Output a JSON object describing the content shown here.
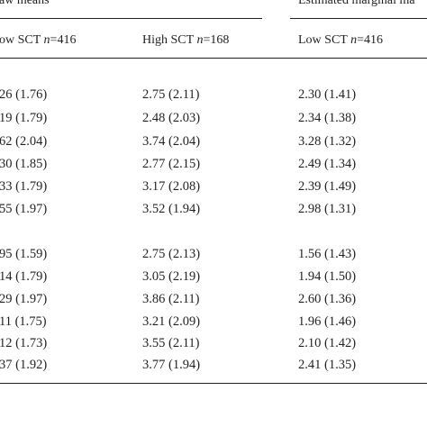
{
  "header": {
    "raw_means": "aw means",
    "estimated_marginal_means": "Estimated marginal ma",
    "columns": [
      {
        "label": "ow SCT ",
        "n": "n",
        "value": "=416"
      },
      {
        "label": "High SCT ",
        "n": "n",
        "value": "=168"
      },
      {
        "label": "Low SCT ",
        "n": "n",
        "value": "=416"
      }
    ]
  },
  "group1": [
    [
      "26 (1.76)",
      "2.75 (2.11)",
      "2.30 (1.41)"
    ],
    [
      "19 (1.79)",
      "2.48 (2.03)",
      "2.34 (1.38)"
    ],
    [
      "62 (2.04)",
      "3.74 (2.04)",
      "3.28 (1.32)"
    ],
    [
      "30 (1.85)",
      "2.77 (2.15)",
      "2.49 (1.34)"
    ],
    [
      "33 (1.79)",
      "3.17 (2.08)",
      "2.39 (1.49)"
    ],
    [
      "55 (1.97)",
      "3.52 (1.94)",
      "2.98 (1.31)"
    ]
  ],
  "group2": [
    [
      "95 (1.59)",
      "2.75 (2.13)",
      "1.56 (1.43)"
    ],
    [
      "14 (1.79)",
      "3.05 (2.19)",
      "1.94 (1.50)"
    ],
    [
      "29 (1.97)",
      "3.86 (2.11)",
      "2.60 (1.36)"
    ],
    [
      "11 (1.75)",
      "3.21 (2.09)",
      "1.96 (1.46)"
    ],
    [
      "12 (1.73)",
      "3.55 (2.11)",
      "2.10 (1.42)"
    ],
    [
      "37 (1.92)",
      "3.77 (1.94)",
      "2.41 (1.35)"
    ]
  ]
}
